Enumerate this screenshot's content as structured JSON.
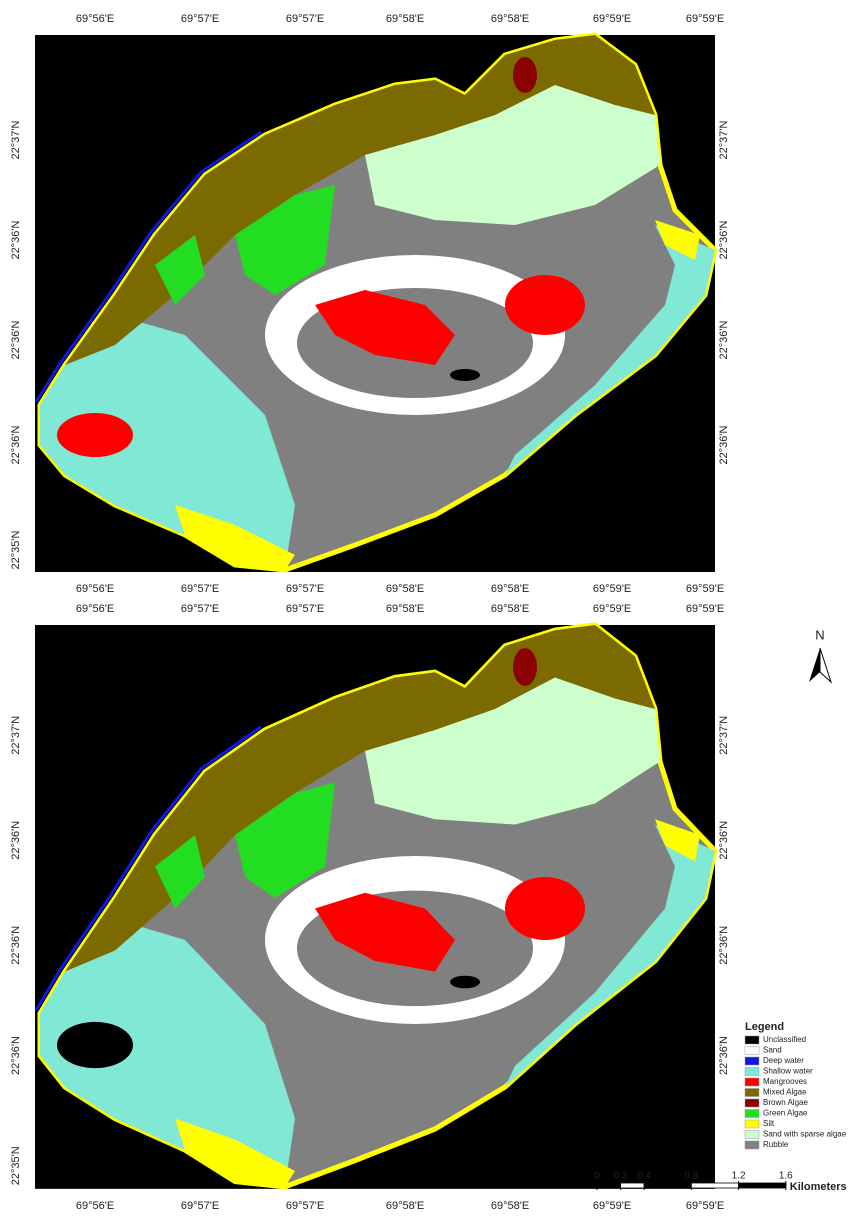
{
  "maps": [
    {
      "lon_top": [
        "69°56'E",
        "69°57'E",
        "69°57'E",
        "69°58'E",
        "69°58'E",
        "69°59'E",
        "69°59'E"
      ],
      "lon_bottom": [
        "69°56'E",
        "69°57'E",
        "69°57'E",
        "69°58'E",
        "69°58'E",
        "69°59'E",
        "69°59'E"
      ],
      "lat_left": [
        "22°37'N",
        "22°36'N",
        "22°36'N",
        "22°36'N",
        "22°35'N"
      ],
      "lat_right": [
        "22°37'N",
        "22°36'N",
        "22°36'N",
        "22°36'N"
      ]
    },
    {
      "lon_top": [
        "69°56'E",
        "69°57'E",
        "69°57'E",
        "69°58'E",
        "69°58'E",
        "69°59'E",
        "69°59'E"
      ],
      "lon_bottom": [
        "69°56'E",
        "69°57'E",
        "69°57'E",
        "69°58'E",
        "69°58'E",
        "69°59'E",
        "69°59'E"
      ],
      "lat_left": [
        "22°37'N",
        "22°36'N",
        "22°36'N",
        "22°36'N",
        "22°35'N"
      ],
      "lat_right": [
        "22°37'N",
        "22°36'N",
        "22°36'N",
        "22°36'N"
      ]
    }
  ],
  "north_arrow": "N",
  "legend": {
    "title": "Legend",
    "items": [
      {
        "label": "Unclassified",
        "color": "#000000"
      },
      {
        "label": "Sand",
        "color": "#ffffff"
      },
      {
        "label": "Deep water",
        "color": "#1018e0"
      },
      {
        "label": "Shallow water",
        "color": "#80e8d4"
      },
      {
        "label": "Mangrooves",
        "color": "#ff0000"
      },
      {
        "label": "Mixed Algae",
        "color": "#7a6a00"
      },
      {
        "label": "Brown Algae",
        "color": "#8b0000"
      },
      {
        "label": "Green Algae",
        "color": "#22dd22"
      },
      {
        "label": "Silt",
        "color": "#ffff00"
      },
      {
        "label": "Sand with sparse algae",
        "color": "#ccffcc"
      },
      {
        "label": "Rubble",
        "color": "#808080"
      }
    ]
  },
  "scale_bar": {
    "ticks": [
      0,
      0.2,
      0.4,
      0.8,
      1.2,
      1.6
    ],
    "unit": "Kilometers"
  }
}
